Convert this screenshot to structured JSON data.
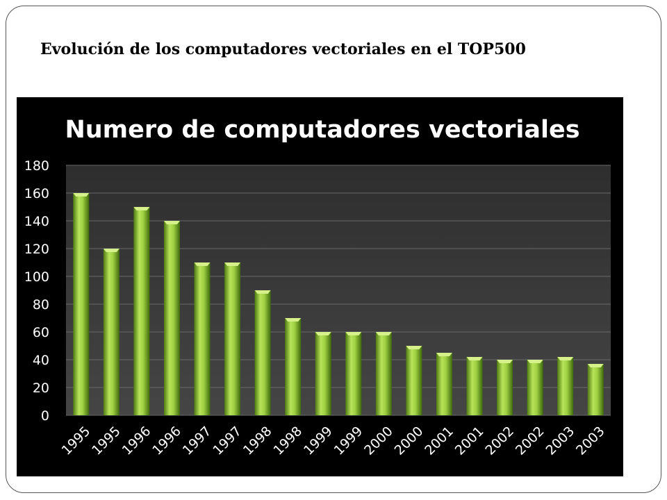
{
  "slide": {
    "title": "Evolución de los computadores vectoriales en el TOP500"
  },
  "colors": {
    "panel_background": "#000000",
    "plot_background": "#3a3a3a",
    "gridline": "#6a6a6a",
    "bar_fill": "#8cc63f",
    "text": "#ffffff"
  },
  "chart_data": {
    "type": "bar",
    "title": "Numero de computadores vectoriales",
    "xlabel": "",
    "ylabel": "",
    "ylim": [
      0,
      180
    ],
    "yticks": [
      0,
      20,
      40,
      60,
      80,
      100,
      120,
      140,
      160,
      180
    ],
    "grid": true,
    "legend": "none",
    "categories": [
      "1995",
      "1995",
      "1996",
      "1996",
      "1997",
      "1997",
      "1998",
      "1998",
      "1999",
      "1999",
      "2000",
      "2000",
      "2001",
      "2001",
      "2002",
      "2002",
      "2003",
      "2003"
    ],
    "values": [
      160,
      120,
      150,
      140,
      110,
      110,
      90,
      70,
      60,
      60,
      60,
      50,
      45,
      42,
      40,
      40,
      42,
      37
    ]
  }
}
